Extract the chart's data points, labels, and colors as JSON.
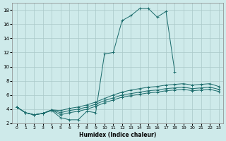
{
  "xlabel": "Humidex (Indice chaleur)",
  "background_color": "#ceeaea",
  "grid_color": "#aac8c8",
  "line_color": "#1a6b6b",
  "xlim": [
    -0.5,
    23.5
  ],
  "ylim": [
    2,
    19
  ],
  "xticks": [
    0,
    1,
    2,
    3,
    4,
    5,
    6,
    7,
    8,
    9,
    10,
    11,
    12,
    13,
    14,
    15,
    16,
    17,
    18,
    19,
    20,
    21,
    22,
    23
  ],
  "yticks": [
    2,
    4,
    6,
    8,
    10,
    12,
    14,
    16,
    18
  ],
  "series": [
    {
      "x": [
        0,
        1,
        2,
        3,
        4,
        5,
        6,
        7,
        8,
        9,
        10,
        11,
        12,
        13,
        14,
        15,
        16,
        17,
        18
      ],
      "y": [
        4.3,
        3.5,
        3.2,
        3.4,
        3.8,
        2.8,
        2.5,
        2.5,
        3.7,
        3.5,
        11.8,
        12.0,
        16.5,
        17.2,
        18.2,
        18.2,
        17.0,
        17.8,
        9.3
      ]
    },
    {
      "x": [
        0,
        1,
        2,
        3,
        4,
        5,
        6,
        7,
        8,
        9,
        10,
        11,
        12,
        13,
        14,
        15,
        16,
        17,
        18,
        19,
        20,
        21,
        22,
        23
      ],
      "y": [
        4.3,
        3.5,
        3.2,
        3.4,
        3.9,
        3.8,
        4.1,
        4.3,
        4.6,
        5.0,
        5.5,
        6.0,
        6.4,
        6.7,
        6.9,
        7.1,
        7.2,
        7.4,
        7.5,
        7.6,
        7.4,
        7.5,
        7.6,
        7.2
      ]
    },
    {
      "x": [
        0,
        1,
        2,
        3,
        4,
        5,
        6,
        7,
        8,
        9,
        10,
        11,
        12,
        13,
        14,
        15,
        16,
        17,
        18,
        19,
        20,
        21,
        22,
        23
      ],
      "y": [
        4.3,
        3.5,
        3.2,
        3.4,
        3.9,
        3.5,
        3.8,
        4.0,
        4.3,
        4.7,
        5.2,
        5.6,
        6.0,
        6.2,
        6.4,
        6.6,
        6.7,
        6.9,
        7.0,
        7.1,
        6.9,
        7.0,
        7.1,
        6.8
      ]
    },
    {
      "x": [
        0,
        1,
        2,
        3,
        4,
        5,
        6,
        7,
        8,
        9,
        10,
        11,
        12,
        13,
        14,
        15,
        16,
        17,
        18,
        19,
        20,
        21,
        22,
        23
      ],
      "y": [
        4.3,
        3.5,
        3.2,
        3.4,
        3.9,
        3.2,
        3.5,
        3.7,
        4.0,
        4.4,
        4.9,
        5.3,
        5.7,
        5.9,
        6.1,
        6.3,
        6.4,
        6.6,
        6.7,
        6.8,
        6.6,
        6.7,
        6.8,
        6.5
      ]
    }
  ]
}
